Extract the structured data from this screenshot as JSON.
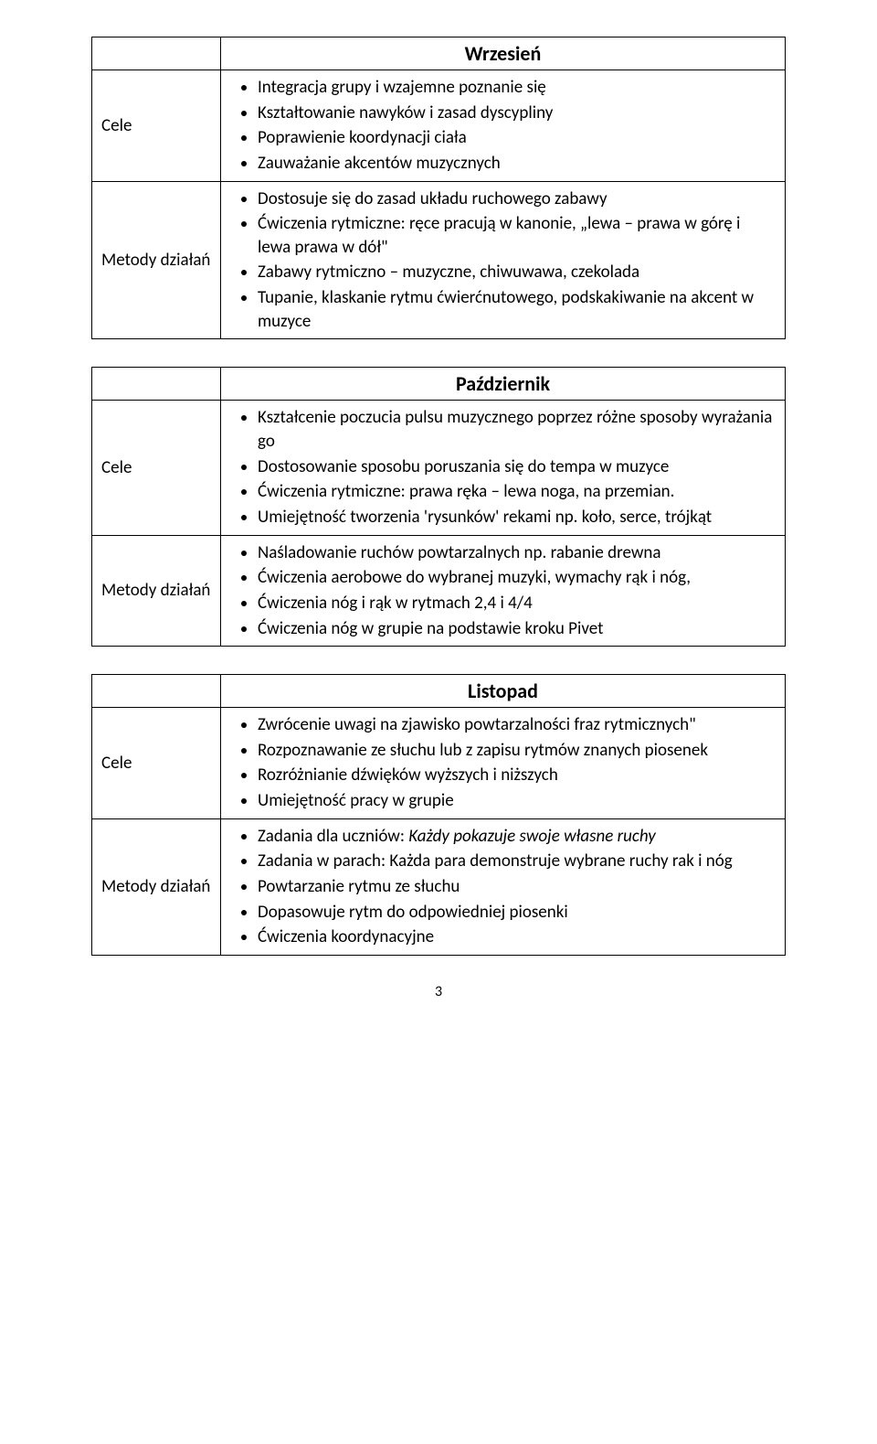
{
  "page_number": "3",
  "tables": [
    {
      "header": "Wrzesień",
      "rows": [
        {
          "label": "Cele",
          "items": [
            "Integracja grupy i wzajemne poznanie się",
            "Kształtowanie nawyków i zasad dyscypliny",
            "Poprawienie koordynacji ciała",
            "Zauważanie akcentów muzycznych"
          ]
        },
        {
          "label": "Metody działań",
          "items": [
            "Dostosuje się do zasad układu ruchowego zabawy",
            "Ćwiczenia rytmiczne: ręce pracują w kanonie, „lewa – prawa w górę i lewa prawa w dół\"",
            "Zabawy rytmiczno – muzyczne, chiwuwawa, czekolada",
            "Tupanie, klaskanie rytmu ćwierćnutowego, podskakiwanie na akcent w muzyce"
          ]
        }
      ]
    },
    {
      "header": "Październik",
      "rows": [
        {
          "label": "Cele",
          "items": [
            "Kształcenie poczucia pulsu muzycznego poprzez różne sposoby wyrażania go",
            "Dostosowanie sposobu poruszania się do tempa w muzyce",
            "Ćwiczenia rytmiczne: prawa ręka – lewa noga, na przemian.",
            "Umiejętność tworzenia 'rysunków' rekami np. koło, serce, trójkąt"
          ]
        },
        {
          "label": "Metody działań",
          "items": [
            "Naśladowanie ruchów powtarzalnych np. rabanie drewna",
            "Ćwiczenia aerobowe do wybranej muzyki, wymachy rąk i nóg,",
            "Ćwiczenia nóg i rąk w rytmach 2,4 i 4/4",
            "Ćwiczenia nóg w grupie na podstawie kroku Pivet"
          ]
        }
      ]
    },
    {
      "header": "Listopad",
      "rows": [
        {
          "label": "Cele",
          "items": [
            "Zwrócenie uwagi na zjawisko powtarzalności fraz rytmicznych\"",
            "Rozpoznawanie ze słuchu lub z zapisu rytmów znanych piosenek",
            "Rozróżnianie dźwięków wyższych i niższych",
            "Umiejętność pracy w grupie"
          ]
        },
        {
          "label": "Metody działań",
          "items": [
            "Zadania dla uczniów: <span class=\"italic\">Każdy pokazuje swoje własne ruchy</span>",
            "Zadania w parach: Każda para demonstruje wybrane ruchy rak i nóg",
            "Powtarzanie rytmu ze słuchu",
            "Dopasowuje rytm do odpowiedniej piosenki",
            "Ćwiczenia koordynacyjne"
          ]
        }
      ]
    }
  ]
}
